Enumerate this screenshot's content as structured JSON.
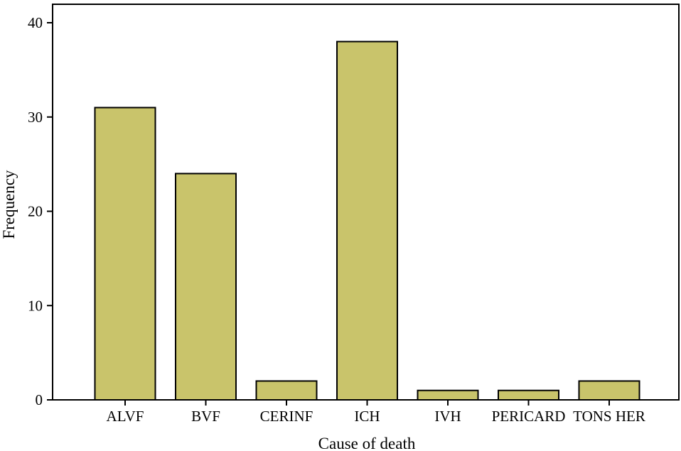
{
  "chart_data": {
    "type": "bar",
    "title": "",
    "xlabel": "Cause of death",
    "ylabel": "Frequency",
    "categories": [
      "ALVF",
      "BVF",
      "CERINF",
      "ICH",
      "IVH",
      "PERICARD",
      "TONS HER"
    ],
    "values": [
      31,
      24,
      2,
      38,
      1,
      1,
      2
    ],
    "ylim": [
      0,
      40
    ],
    "yticks": [
      0,
      10,
      20,
      30,
      40
    ],
    "grid": false,
    "legend": "none",
    "colors": {
      "bar_fill": "#C9C46B",
      "bar_stroke": "#000000"
    }
  }
}
